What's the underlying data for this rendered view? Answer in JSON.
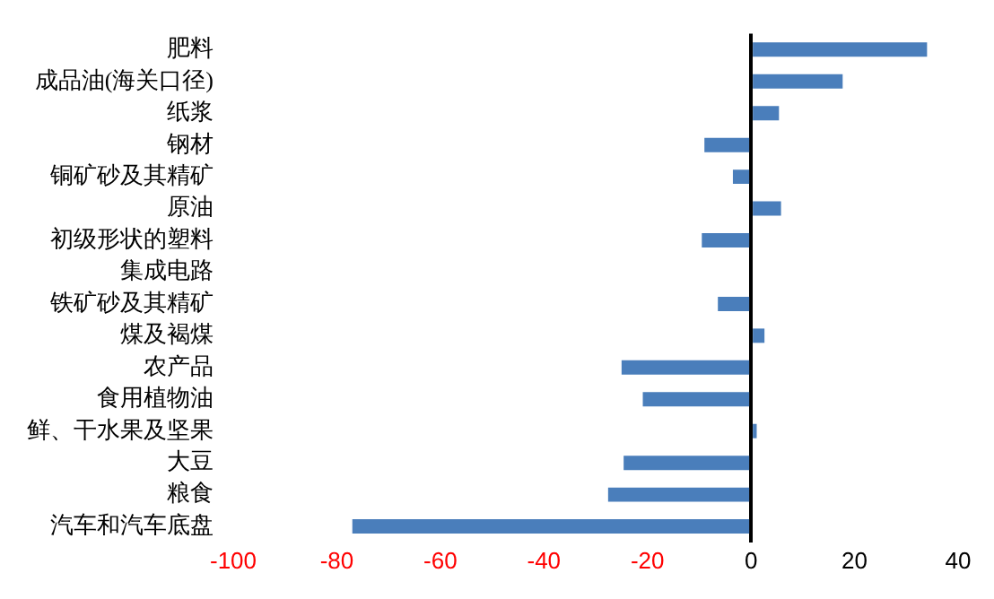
{
  "chart_data": {
    "type": "bar",
    "orientation": "horizontal",
    "categories": [
      "肥料",
      "成品油(海关口径)",
      "纸浆",
      "钢材",
      "铜矿砂及其精矿",
      "原油",
      "初级形状的塑料",
      "集成电路",
      "铁矿砂及其精矿",
      "煤及褐煤",
      "农产品",
      "食用植物油",
      "鲜、干水果及坚果",
      "大豆",
      "粮食",
      "汽车和汽车底盘"
    ],
    "values": [
      34,
      17.7,
      5.4,
      -9,
      -3.5,
      5.8,
      -9.5,
      0,
      -6.4,
      2.6,
      -25,
      -20.9,
      1.1,
      -24.6,
      -27.6,
      -77
    ],
    "color": "#4a7ebb",
    "xlim": [
      -100,
      40
    ],
    "xticks": [
      -100,
      -80,
      -60,
      -40,
      -20,
      0,
      20,
      40
    ]
  }
}
